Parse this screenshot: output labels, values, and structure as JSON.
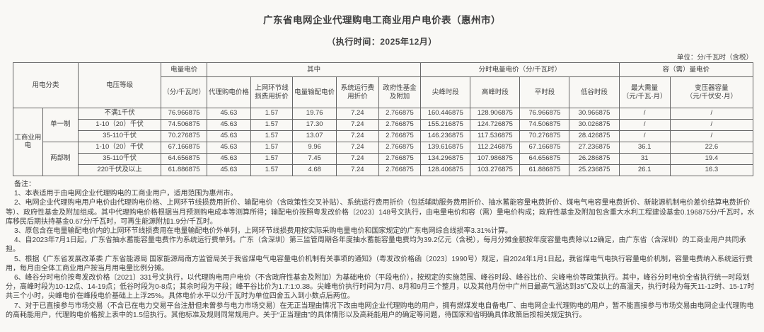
{
  "page": {
    "title": "广东省电网企业代理购电工商业用户电价表（惠州市）",
    "subtitle": "（执行时间：2025年12月）",
    "unit_note": "单位：分/千瓦时（含税）"
  },
  "table": {
    "header": {
      "usage_category": "用电分类",
      "voltage_level": "电压等级",
      "energy_price": "电量电价",
      "energy_price_unit": "（分/千瓦时）",
      "of_which": "其中",
      "col_agent": "代理购电价格",
      "col_line_loss": "上网环节线损费用折价",
      "col_transmission": "电量输配电价",
      "col_system_ops": "系统运行费用折价",
      "col_gov_funds": "政府性基金及附加",
      "tou_group": "分时电量电价（分/千瓦时）",
      "col_sharp_peak": "尖峰时段",
      "col_peak": "高峰时段",
      "col_flat": "平时段",
      "col_valley": "低谷时段",
      "capacity_group": "容（需）量电价",
      "max_demand": "最大需量",
      "max_demand_unit": "（元/千瓦·月）",
      "transformer_capacity": "变压器容量",
      "transformer_capacity_unit": "（元/千伏安·月）"
    },
    "category": "工商业用电",
    "groups": [
      {
        "system": "单一制",
        "rows": [
          {
            "voltage": "不满1千伏",
            "values": [
              "76.966875",
              "45.63",
              "1.57",
              "19.76",
              "7.24",
              "2.766875",
              "160.446875",
              "128.906875",
              "76.966875",
              "30.966875",
              "/",
              "/"
            ]
          },
          {
            "voltage": "1-10（20）千伏",
            "values": [
              "74.506875",
              "45.63",
              "1.57",
              "17.30",
              "7.24",
              "2.766875",
              "155.216875",
              "124.726875",
              "74.506875",
              "30.026875",
              "/",
              "/"
            ]
          },
          {
            "voltage": "35-110千伏",
            "values": [
              "70.276875",
              "45.63",
              "1.57",
              "13.07",
              "7.24",
              "2.766875",
              "146.236875",
              "117.536875",
              "70.276875",
              "28.426875",
              "/",
              "/"
            ]
          }
        ]
      },
      {
        "system": "两部制",
        "rows": [
          {
            "voltage": "1-10（20）千伏",
            "values": [
              "67.166875",
              "45.63",
              "1.57",
              "9.96",
              "7.24",
              "2.766875",
              "139.616875",
              "112.246875",
              "67.166875",
              "27.236875",
              "36.1",
              "22.6"
            ]
          },
          {
            "voltage": "35-110千伏",
            "values": [
              "64.656875",
              "45.63",
              "1.57",
              "7.45",
              "7.24",
              "2.766875",
              "134.296875",
              "107.986875",
              "64.656875",
              "26.286875",
              "31",
              "19.4"
            ]
          },
          {
            "voltage": "220千伏及以上",
            "values": [
              "61.886875",
              "45.63",
              "1.57",
              "4.68",
              "7.24",
              "2.766875",
              "128.406875",
              "103.276875",
              "61.886875",
              "25.236875",
              "26.1",
              "16.3"
            ]
          }
        ]
      }
    ]
  },
  "notes": {
    "label": "备注：",
    "items": [
      "1、本表适用于由电网企业代理购电的工商业用户，适用范围为惠州市。",
      "2、电网企业代理购电用户电价由代理购电价格、上网环节线损费用折价、输配电价（含政策性交叉补贴）、系统运行费用折价（包括辅助服务费用折价、抽水蓄能容量电费折价、煤电气电容量电费折价、新能源机制电价差价结算电费折价等）、政府性基金及附加组成。其中代理购电价格根据当月预测购电成本等测算所得；输配电价按照粤发改价格〔2023〕148号文执行，由电量电价和容（需）量电价构成；政府性基金及附加包含重大水利工程建设基金0.196875分/千瓦时，水库移民后期扶持基金0.67分/千瓦时，可再生能源附加1.9分/千瓦时。",
      "3、原包含在电量输配电价内的上网环节线损费用在电量输配电价外单列，上网环节线损费用按实际采购电量电价和国家规定的广东电网综合线损率3.31%计算。",
      "4、自2023年7月1日起，广东省抽水蓄能容量电费作为系统运行费单列。广东（含深圳）第三监管周期各年度抽水蓄能容量电费均为39.2亿元（含税），每月分摊金额按年度容量电费除以12确定，由广东省（含深圳）的工商业用户共同承担。",
      "5、根据《广东省发展改革委 广东省能源局 国家能源局南方监管局关于我省煤电气电容量电价机制有关事项的通知》（粤发改价格函〔2023〕1990号）规定，自2024年1月1日起，我省煤电气电执行容量电价机制，容量电费纳入系统运行费用，每月由全体工商业用户按当月用电量比例分摊。",
      "6、峰谷分时电价按粤发改价格〔2021〕331号文执行，以代理购电用户电价（不含政府性基金及附加）为基础电价（平段电价），按规定的实施范围、峰谷时段、峰谷比价、尖峰电价等政策执行。其中，峰谷分时电价全省执行统一时段划分，高峰时段为10-12点、14-19点；低谷时段为0-8点；其余时段为平段；峰平谷比价为1.7:1:0.38。尖峰电价执行时间为7月、8月和9月三个整月，以及其他月份中广州日最高气温达到35℃及以上的高温天，执行时段为每天11-12时、15-17时共三个小时，尖峰电价在峰段电价基础上上浮25%。具体电价水平以分/千瓦时为单位四舍五入到小数点后两位。",
      "7、对于已直接参与市场交易（不含已在电力交易平台注册但未曾参与电力市场交易）在无正当理由情况下改由电网企业代理购电的用户，拥有燃煤发电自备电厂、由电网企业代理购电的用户，暂不能直接参与市场交易由电网企业代理购电的高耗能用户，代理购电价格按上表中的1.5倍执行。其他标准及规则同常规用户。关于“正当理由”的具体情形以及高耗能用户的确定等问题，待国家和省明确具体政策后按相关规定执行。"
    ]
  }
}
